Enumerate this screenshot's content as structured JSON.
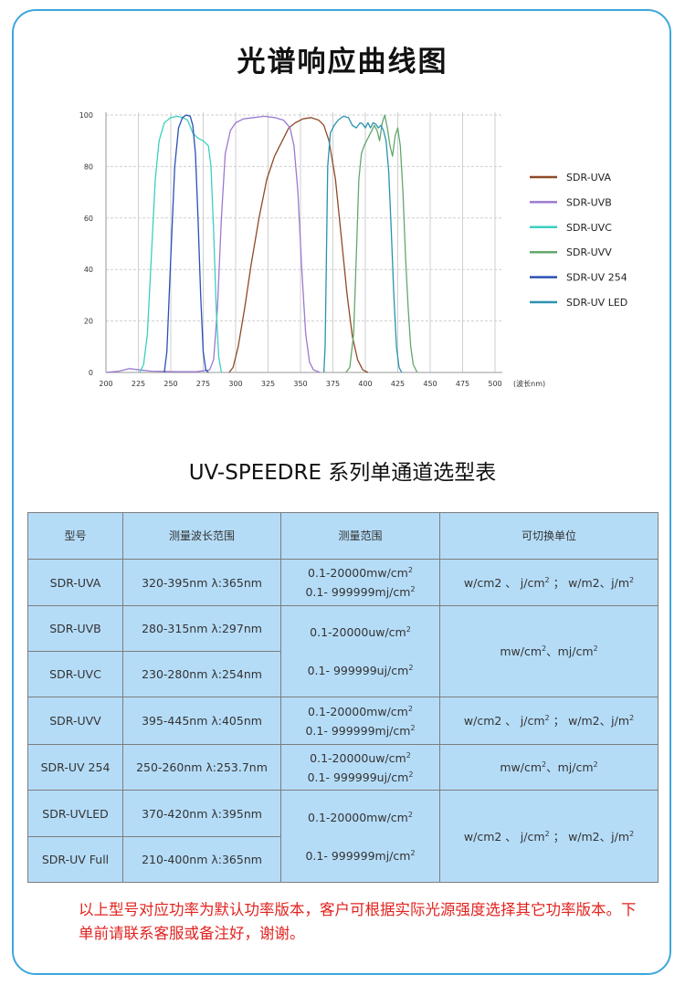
{
  "page_title": "光谱响应曲线图",
  "table_title": "UV-SPEEDRE 系列单通道选型表",
  "colors": {
    "frame_border": "#3ea6dc",
    "table_bg": "#b5dcf7",
    "note_text": "#e0231f"
  },
  "chart_data": {
    "type": "line",
    "title": "",
    "xlabel": "(波长nm)",
    "ylabel": "",
    "xlim": [
      200,
      500
    ],
    "ylim": [
      0,
      100
    ],
    "x_ticks": [
      200,
      225,
      250,
      275,
      300,
      325,
      350,
      375,
      400,
      425,
      450,
      475,
      500
    ],
    "y_ticks": [
      0,
      20,
      40,
      60,
      80,
      100
    ],
    "grid": true,
    "legend_position": "right",
    "series": [
      {
        "name": "SDR-UVA",
        "color": "#8e4a26",
        "points": [
          [
            295,
            0
          ],
          [
            298,
            2
          ],
          [
            302,
            10
          ],
          [
            307,
            25
          ],
          [
            312,
            42
          ],
          [
            318,
            60
          ],
          [
            324,
            75
          ],
          [
            330,
            84
          ],
          [
            336,
            90
          ],
          [
            341,
            95
          ],
          [
            346,
            97
          ],
          [
            352,
            98.5
          ],
          [
            358,
            99
          ],
          [
            364,
            98
          ],
          [
            368,
            96
          ],
          [
            372,
            90
          ],
          [
            377,
            75
          ],
          [
            381,
            55
          ],
          [
            386,
            30
          ],
          [
            390,
            14
          ],
          [
            394,
            5
          ],
          [
            398,
            1
          ],
          [
            402,
            0
          ]
        ]
      },
      {
        "name": "SDR-UVB",
        "color": "#9a7ad0",
        "points": [
          [
            200,
            0
          ],
          [
            210,
            0.5
          ],
          [
            218,
            1.5
          ],
          [
            226,
            1
          ],
          [
            235,
            0.5
          ],
          [
            255,
            0.3
          ],
          [
            270,
            0.3
          ],
          [
            280,
            1
          ],
          [
            283,
            5
          ],
          [
            286,
            25
          ],
          [
            289,
            60
          ],
          [
            292,
            85
          ],
          [
            296,
            94
          ],
          [
            300,
            97
          ],
          [
            306,
            98.5
          ],
          [
            314,
            99
          ],
          [
            322,
            99.5
          ],
          [
            330,
            99
          ],
          [
            337,
            98
          ],
          [
            342,
            95
          ],
          [
            345,
            88
          ],
          [
            348,
            70
          ],
          [
            351,
            40
          ],
          [
            354,
            15
          ],
          [
            357,
            4
          ],
          [
            360,
            1
          ],
          [
            365,
            0
          ]
        ]
      },
      {
        "name": "SDR-UVC",
        "color": "#3ccfc0",
        "points": [
          [
            226,
            0
          ],
          [
            229,
            3
          ],
          [
            232,
            15
          ],
          [
            235,
            45
          ],
          [
            238,
            75
          ],
          [
            241,
            90
          ],
          [
            245,
            97
          ],
          [
            250,
            99
          ],
          [
            255,
            99.5
          ],
          [
            259,
            99
          ],
          [
            263,
            98
          ],
          [
            267,
            93
          ],
          [
            271,
            91
          ],
          [
            275,
            90
          ],
          [
            279,
            88
          ],
          [
            281,
            80
          ],
          [
            283,
            55
          ],
          [
            285,
            25
          ],
          [
            287,
            6
          ],
          [
            289,
            0
          ]
        ]
      },
      {
        "name": "SDR-UVV",
        "color": "#63a86c",
        "points": [
          [
            385,
            0
          ],
          [
            388,
            2
          ],
          [
            391,
            15
          ],
          [
            393,
            45
          ],
          [
            395,
            75
          ],
          [
            397,
            85
          ],
          [
            399,
            88
          ],
          [
            401,
            90
          ],
          [
            404,
            93
          ],
          [
            407,
            96
          ],
          [
            409,
            94
          ],
          [
            411,
            90
          ],
          [
            413,
            97
          ],
          [
            415,
            100
          ],
          [
            417,
            95
          ],
          [
            419,
            88
          ],
          [
            421,
            84
          ],
          [
            423,
            92
          ],
          [
            425,
            95
          ],
          [
            427,
            88
          ],
          [
            429,
            70
          ],
          [
            431,
            45
          ],
          [
            433,
            25
          ],
          [
            435,
            10
          ],
          [
            437,
            3
          ],
          [
            440,
            0
          ]
        ]
      },
      {
        "name": "SDR-UV 254",
        "color": "#2b4fb4",
        "points": [
          [
            245,
            0
          ],
          [
            247,
            8
          ],
          [
            250,
            45
          ],
          [
            253,
            80
          ],
          [
            256,
            95
          ],
          [
            259,
            99
          ],
          [
            262,
            100
          ],
          [
            265,
            99.5
          ],
          [
            267,
            96
          ],
          [
            269,
            85
          ],
          [
            271,
            60
          ],
          [
            273,
            30
          ],
          [
            275,
            8
          ],
          [
            277,
            1
          ],
          [
            279,
            0
          ]
        ]
      },
      {
        "name": "SDR-UV LED",
        "color": "#2a92b0",
        "points": [
          [
            368,
            0
          ],
          [
            369,
            10
          ],
          [
            370,
            45
          ],
          [
            371,
            80
          ],
          [
            373,
            93
          ],
          [
            376,
            96
          ],
          [
            379,
            98
          ],
          [
            383,
            99.5
          ],
          [
            387,
            99
          ],
          [
            390,
            96
          ],
          [
            393,
            95
          ],
          [
            396,
            97
          ],
          [
            398,
            96.5
          ],
          [
            400,
            95
          ],
          [
            402,
            97
          ],
          [
            404,
            95
          ],
          [
            406,
            97
          ],
          [
            408,
            96.5
          ],
          [
            410,
            95
          ],
          [
            412,
            96
          ],
          [
            414,
            94
          ],
          [
            416,
            90
          ],
          [
            418,
            78
          ],
          [
            420,
            55
          ],
          [
            422,
            30
          ],
          [
            424,
            10
          ],
          [
            426,
            2
          ],
          [
            428,
            0
          ]
        ]
      }
    ]
  },
  "table": {
    "headers": [
      "型号",
      "测量波长范围",
      "测量范围",
      "可切换单位"
    ],
    "rows": [
      {
        "model": "SDR-UVA",
        "wavelength": "320-395nm  λ:365nm"
      },
      {
        "model": "SDR-UVB",
        "wavelength": "280-315nm  λ:297nm"
      },
      {
        "model": "SDR-UVC",
        "wavelength": "230-280nm  λ:254nm"
      },
      {
        "model": "SDR-UVV",
        "wavelength": "395-445nm  λ:405nm"
      },
      {
        "model": "SDR-UV 254",
        "wavelength": "250-260nm  λ:253.7nm"
      },
      {
        "model": "SDR-UVLED",
        "wavelength": "370-420nm  λ:395nm"
      },
      {
        "model": "SDR-UV Full",
        "wavelength": "210-400nm  λ:365nm"
      }
    ],
    "ranges": {
      "uva": {
        "l1": "0.1-20000mw/cm",
        "l2": "0.1- 999999mj/cm"
      },
      "uvbc": {
        "l1": "0.1-20000uw/cm",
        "l2": "0.1- 999999uj/cm"
      },
      "uvv": {
        "l1": "0.1-20000mw/cm",
        "l2": "0.1- 999999mj/cm"
      },
      "uv254": {
        "l1": "0.1-20000uw/cm",
        "l2": "0.1- 999999uj/cm"
      },
      "led_full": {
        "l1": "0.1-20000mw/cm",
        "l2": "0.1- 999999mj/cm"
      }
    },
    "units": {
      "uva": {
        "a": "w/cm2 、 j/cm",
        "b": "；  w/m2、j/m"
      },
      "uvbc": {
        "a": "mw/cm",
        "b": "、mj/cm"
      },
      "uvv": {
        "a": "w/cm2 、 j/cm",
        "b": "；  w/m2、j/m"
      },
      "uv254": {
        "a": "mw/cm",
        "b": "、mj/cm"
      },
      "led_full": {
        "a": "w/cm2 、 j/cm",
        "b": "；  w/m2、j/m"
      }
    },
    "superscript": "2"
  },
  "note": "以上型号对应功率为默认功率版本，客户可根据实际光源强度选择其它功率版本。下单前请联系客服或备注好，谢谢。"
}
